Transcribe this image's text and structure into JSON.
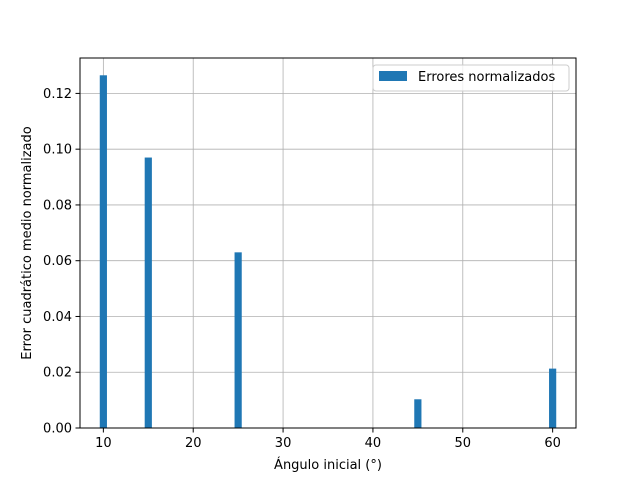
{
  "chart_data": {
    "type": "bar",
    "x": [
      10,
      15,
      25,
      45,
      60
    ],
    "series": [
      {
        "name": "Errores normalizados",
        "values": [
          0.1265,
          0.097,
          0.063,
          0.0103,
          0.0213
        ],
        "color": "#1f77b4"
      }
    ],
    "bar_width": 0.8,
    "xlabel": "Ángulo inicial (°)",
    "ylabel": "Error cuadrático medio normalizado",
    "xlim": [
      7.4,
      62.6
    ],
    "ylim": [
      0,
      0.1327
    ],
    "xticks": [
      10,
      20,
      30,
      40,
      50,
      60
    ],
    "xtick_labels": [
      "10",
      "20",
      "30",
      "40",
      "50",
      "60"
    ],
    "yticks": [
      0,
      0.02,
      0.04,
      0.06,
      0.08,
      0.1,
      0.12
    ],
    "ytick_labels": [
      "0.00",
      "0.02",
      "0.04",
      "0.06",
      "0.08",
      "0.10",
      "0.12"
    ],
    "grid": true,
    "grid_color": "#b0b0b0",
    "legend_position": "top-right"
  }
}
